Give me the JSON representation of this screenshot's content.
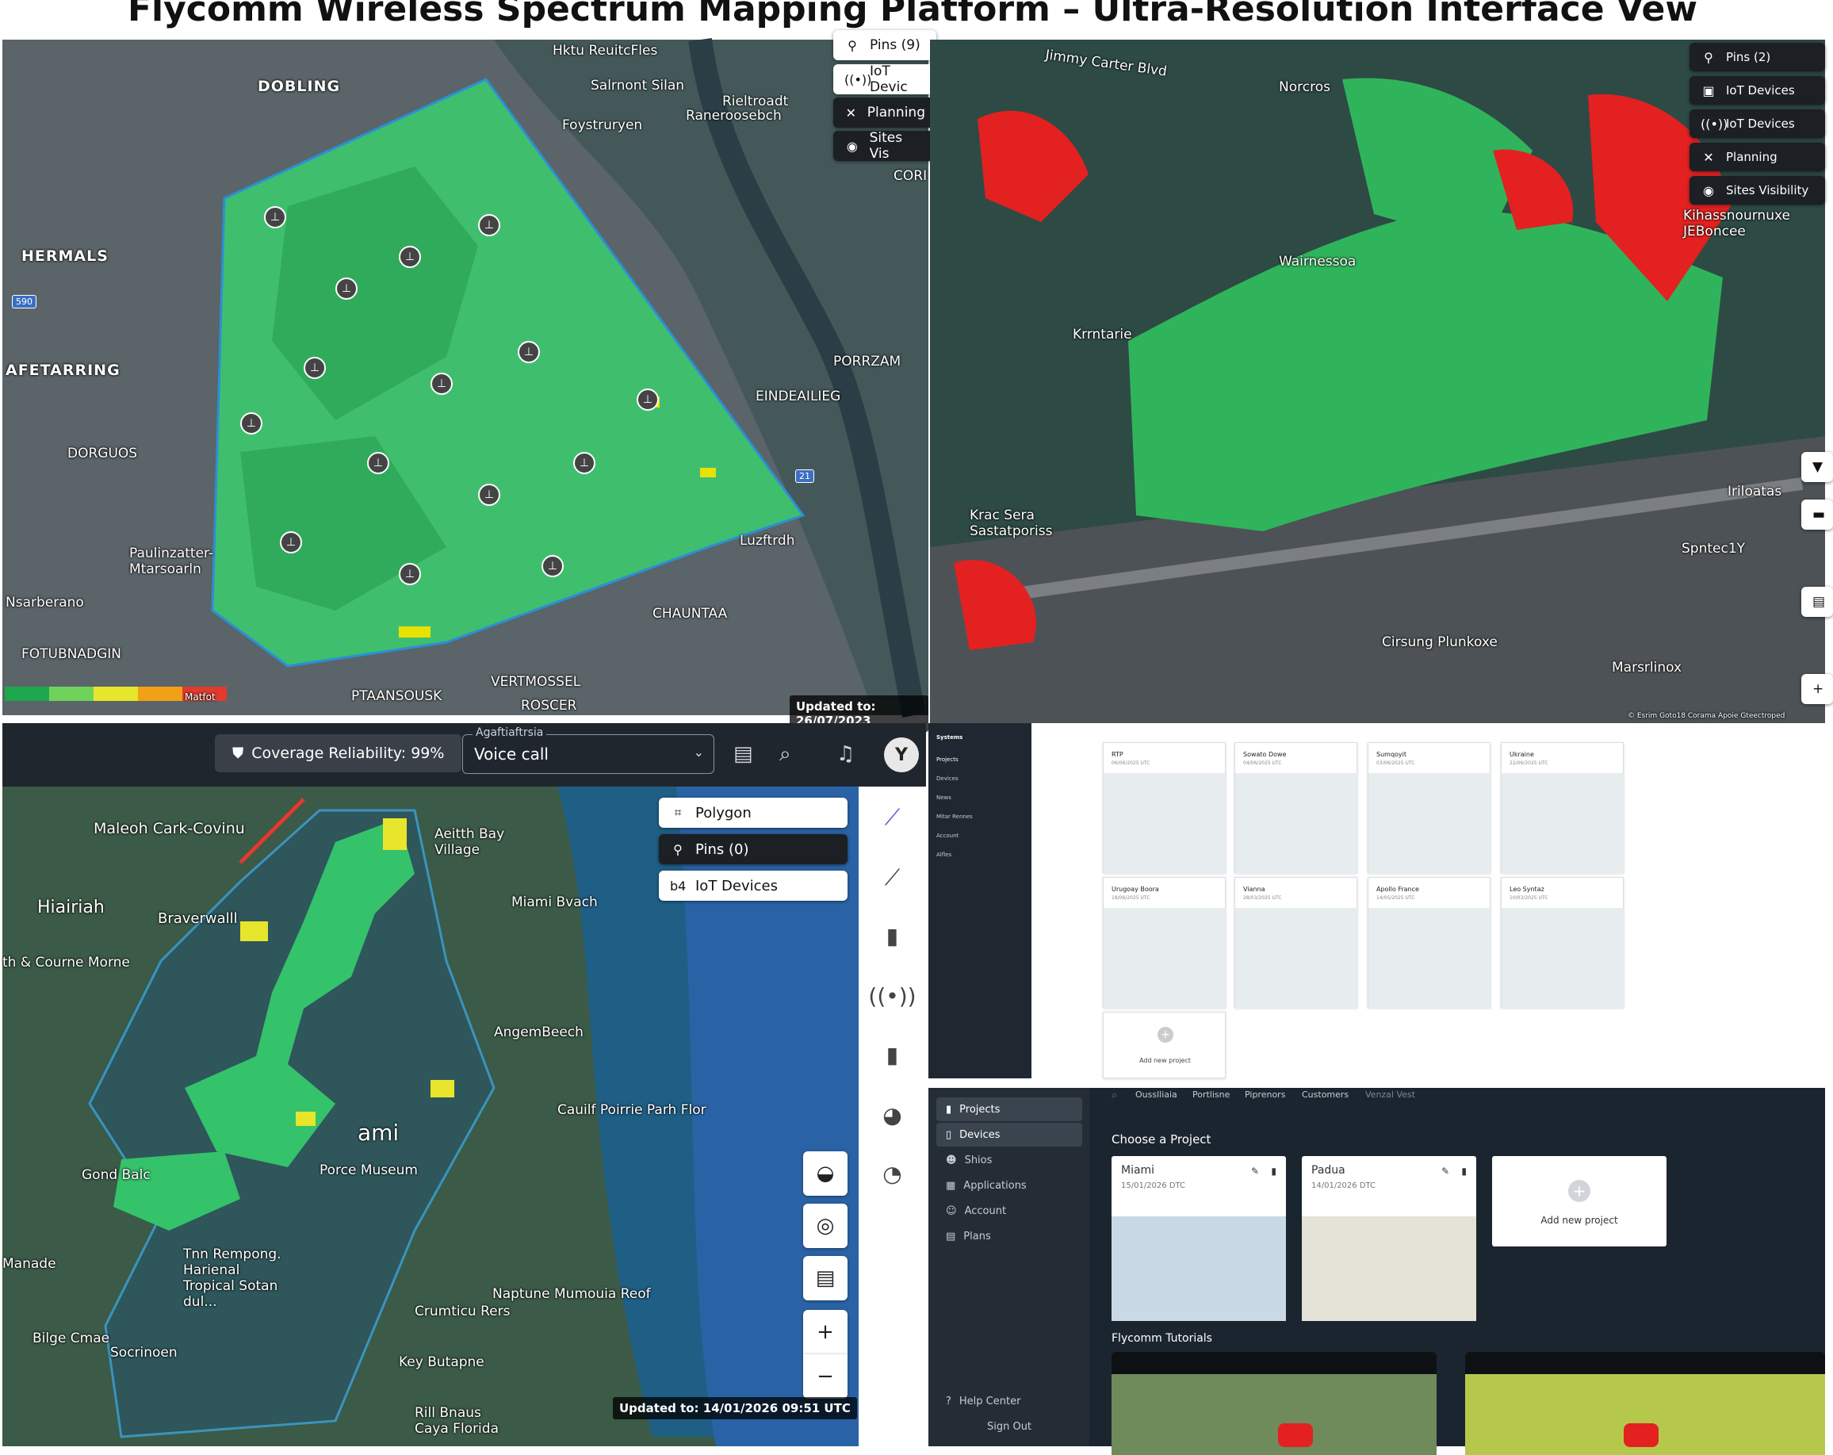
{
  "page": {
    "title": "Flycomm Wireless Spectrum Mapping Platform – Ultra-Resolution Interface Vew"
  },
  "panel1": {
    "labels": [
      "DOBLING",
      "HERMALS",
      "AFETARRING",
      "DORGUOS",
      "FOTUBNADGIN",
      "Nsarberano",
      "Paulinzatter-Mtarsoarln",
      "Luzftrdh",
      "CORI",
      "PORRZAM",
      "EINDEAILIEG",
      "CHAUNTAA",
      "PTAANSOUSK",
      "ROSCER",
      "VERTMOSSEL",
      "Foystruryen",
      "Hktu ReuitcFles",
      "Salrnont Silan",
      "Rieltroadt",
      "Raneroosebch"
    ],
    "overlay": {
      "pins": "Pins (9)",
      "iot": "IoT Devic",
      "planning": "Planning",
      "sites": "Sites Vis"
    },
    "legend_label": "Matfot",
    "updated": "Updated to: 26/07/2023"
  },
  "panel2": {
    "labels": [
      "Jimmy Carter Blvd",
      "Norcros",
      "Wairnessoa",
      "Krrntarie",
      "Krac Sera Sastatporiss",
      "Cirsung Plunkoxe",
      "Marsrlinox",
      "Spntec1Y",
      "Iriloatas",
      "Kihassnournuxe JEBoncee"
    ],
    "overlay": {
      "pins": "Pins (2)",
      "iot1": "IoT Devices",
      "iot2": "IoT Devices",
      "planning": "Planning",
      "sites": "Sites Visibility"
    },
    "attribution": "© Esrim Goto18 Corama Apoie Gteectroped"
  },
  "panel3": {
    "reliability": "Coverage Reliability: 99%",
    "select_caption": "Agaftiaftrsia",
    "select_value": "Voice call",
    "avatar_letter": "Y",
    "overlay": {
      "polygon": "Polygon",
      "pins": "Pins (0)",
      "iot": "IoT Devices"
    },
    "labels": [
      "Maleoh Cark-Covinu",
      "Aeitth Bay Village",
      "Hiairiah",
      "Braverwalll",
      "Miami Bvach",
      "th & Courne Morne",
      "AngemBeech",
      "Cauilf Poirrie Parh Flor",
      "Gond Balc",
      "ami",
      "Porce Museum",
      "Manade",
      "Tnn Rempong. Harienal Tropical Sotan dul...",
      "Naptune Mumouia Reof",
      "Crumticu Rers",
      "Key Butapne",
      "Bilge Cmae",
      "Socrinoen",
      "Rill Bnaus Caya Florida"
    ],
    "updated": "Updated to: 14/01/2026 09:51 UTC"
  },
  "panel4": {
    "brand": "Systems",
    "sidebar": [
      "Projects",
      "Devices",
      "News",
      "Mitar Rennes",
      "Account",
      "Alfles"
    ],
    "cards": [
      {
        "name": "RTP",
        "date": "06/06/2025 UTC"
      },
      {
        "name": "Sowato Dowe",
        "date": "04/06/2025 UTC"
      },
      {
        "name": "Sumqoyit",
        "date": "03/06/2025 UTC"
      },
      {
        "name": "Ukraine",
        "date": "22/06/2025 UTC"
      },
      {
        "name": "Urugoay Boora",
        "date": "18/06/2025 UTC"
      },
      {
        "name": "Vianna",
        "date": "28/03/2025 UTC"
      },
      {
        "name": "Apollo France",
        "date": "14/05/2025 UTC"
      },
      {
        "name": "Leo Syntaz",
        "date": "10/03/2025 UTC"
      }
    ],
    "add_new": "Add new project"
  },
  "panel5": {
    "sidebar": [
      "Projects",
      "Devices",
      "Shios",
      "Applications",
      "Account",
      "Plans"
    ],
    "top_links": [
      "Ousslliaia",
      "Portlisne",
      "Piprenors",
      "Customers",
      "Venzal Vest"
    ],
    "choose_title": "Choose a Project",
    "cards": [
      {
        "name": "Miami",
        "date": "15/01/2026 DTC"
      },
      {
        "name": "Padua",
        "date": "14/01/2026 DTC"
      }
    ],
    "add_new": "Add new project",
    "tutorials_title": "Flycomm Tutorials",
    "help": "Help Center",
    "signout": "Sign Out"
  }
}
